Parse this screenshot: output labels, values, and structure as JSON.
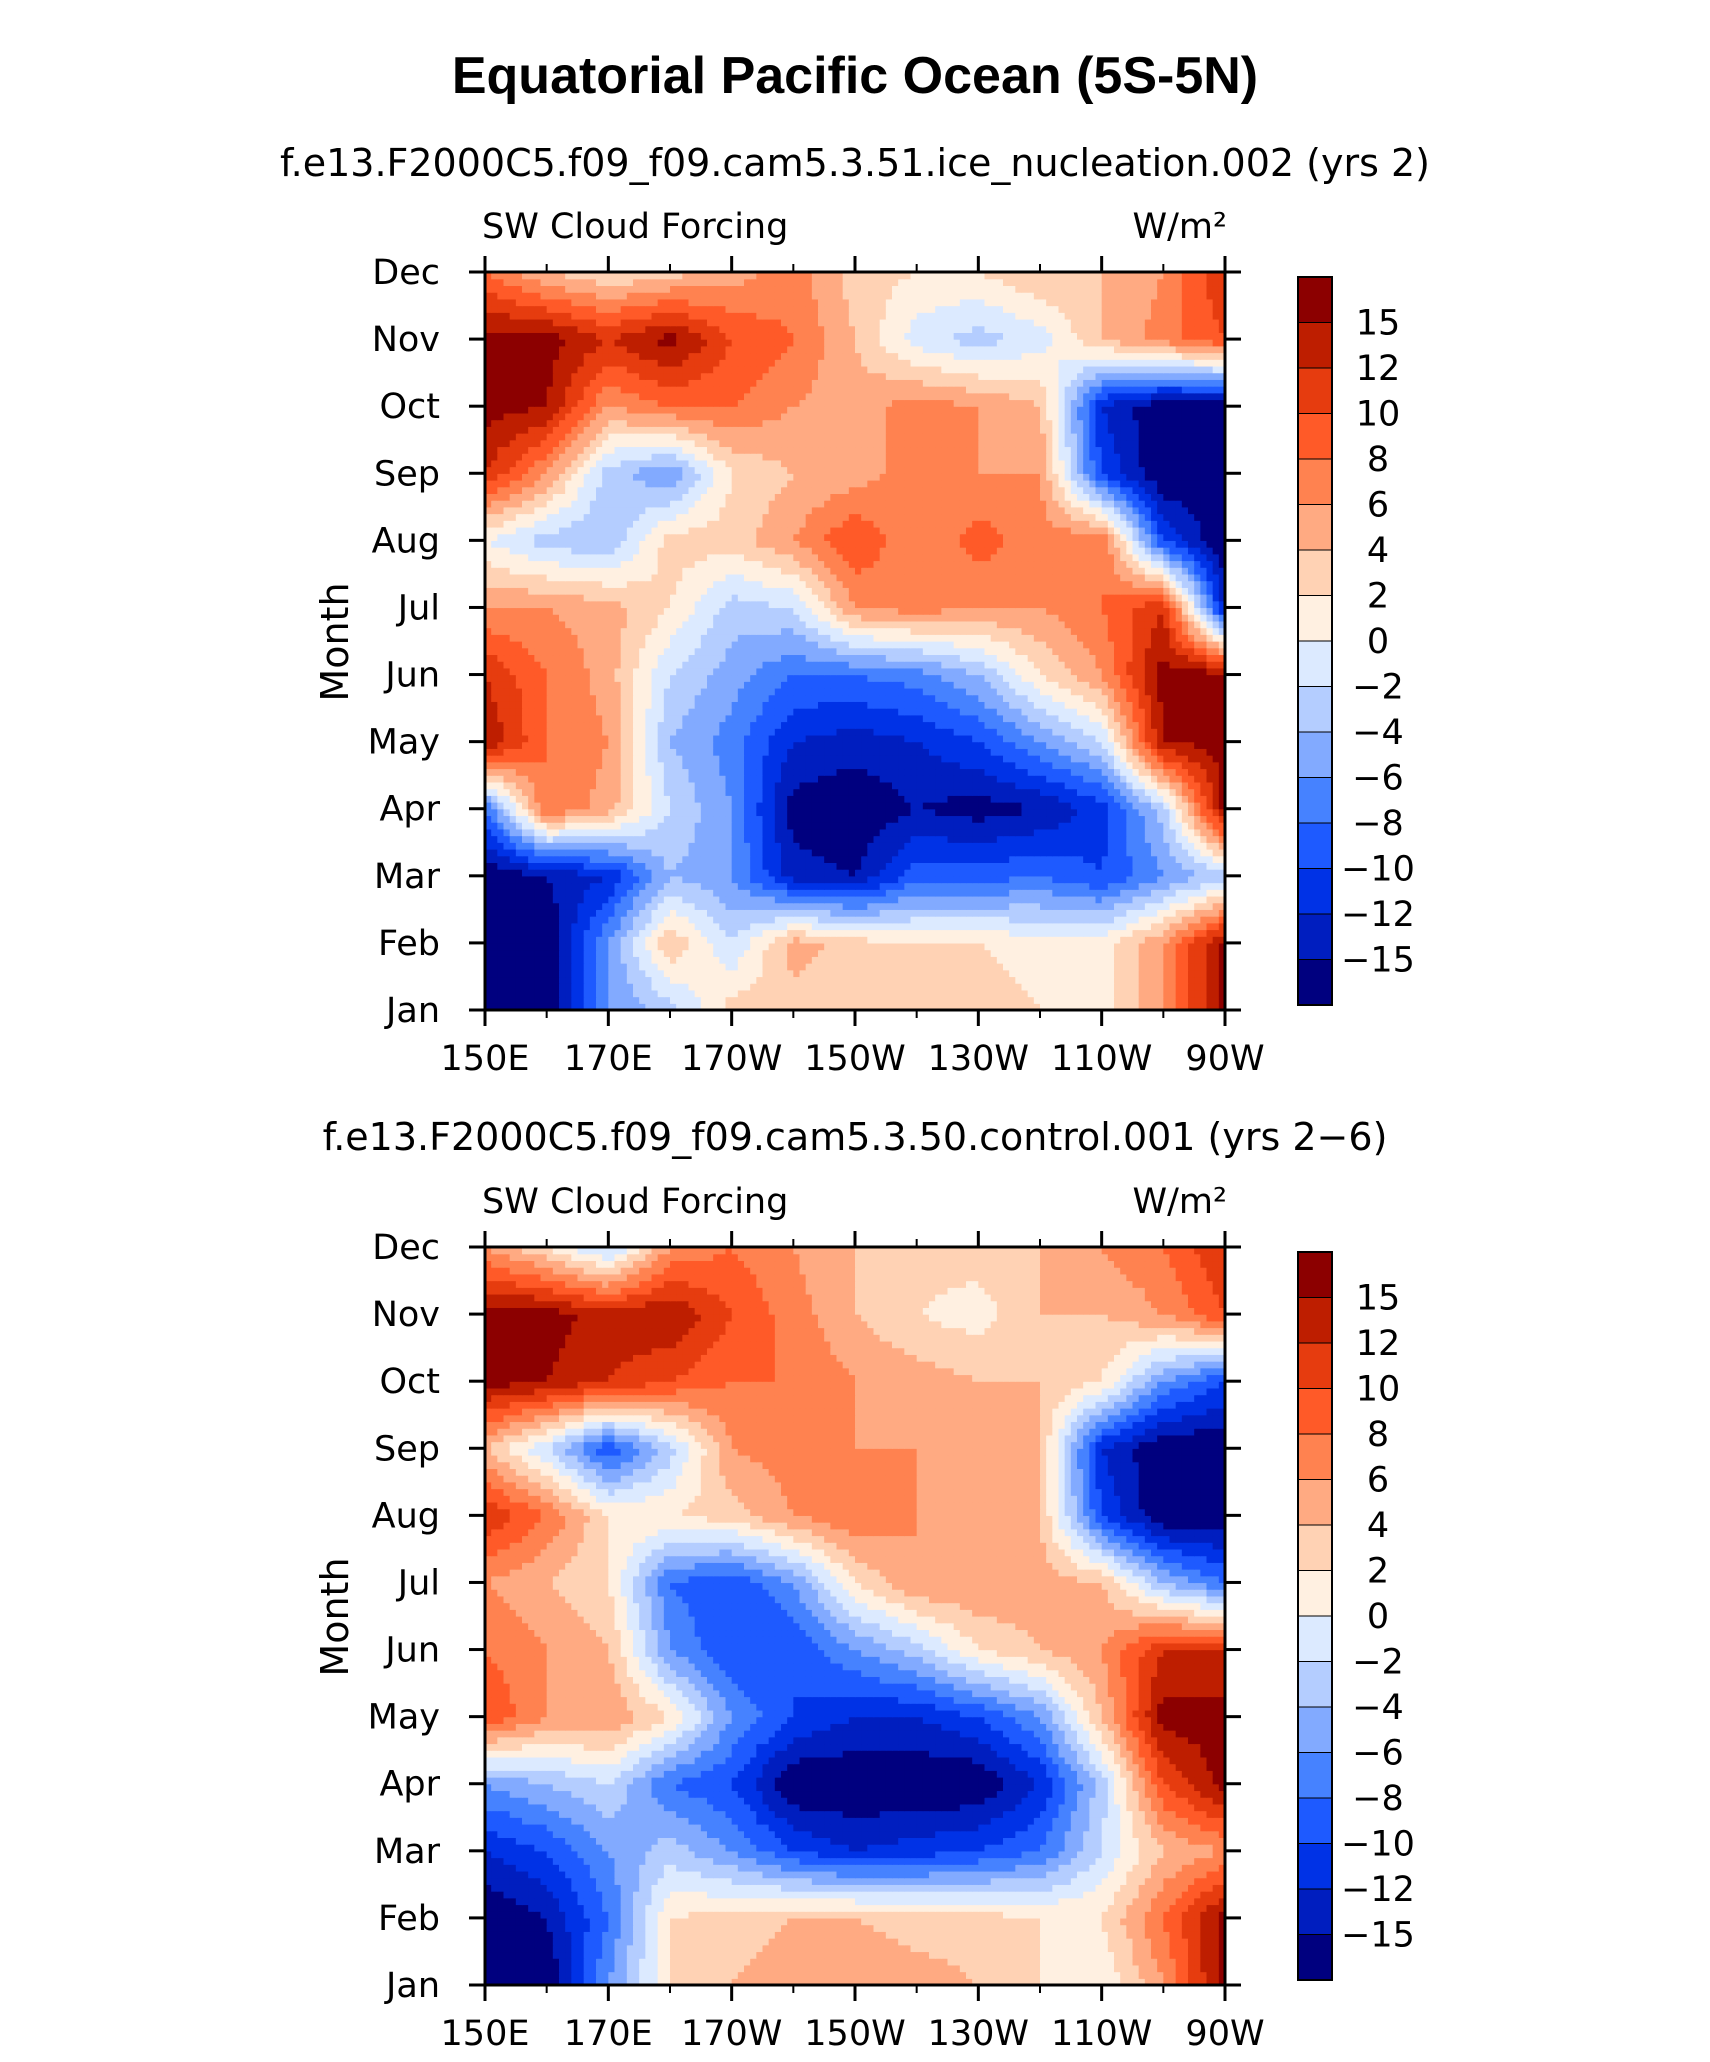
{
  "title": "Equatorial Pacific Ocean (5S-5N)",
  "colors": {
    "levels": [
      "#00007f",
      "#001ebf",
      "#0032e6",
      "#1e5aff",
      "#4682ff",
      "#82aaff",
      "#b4cdff",
      "#dceaff",
      "#fff0e1",
      "#ffd2b4",
      "#ffaa82",
      "#ff8250",
      "#ff5a28",
      "#e63c0f",
      "#be1e00",
      "#8c0000"
    ]
  },
  "chart_data": [
    {
      "type": "heatmap",
      "subtitle": "f.e13.F2000C5.f09_f09.cam5.3.51.ice_nucleation.002 (yrs 2)",
      "left_label": "SW Cloud Forcing",
      "units_label": "W/m²",
      "ylabel": "Month",
      "xlabel": "",
      "x_ticks": [
        "150E",
        "170E",
        "170W",
        "150W",
        "130W",
        "110W",
        "90W"
      ],
      "x_lon_range": [
        150,
        270
      ],
      "y_ticks": [
        "Jan",
        "Feb",
        "Mar",
        "Apr",
        "May",
        "Jun",
        "Jul",
        "Aug",
        "Sep",
        "Oct",
        "Nov",
        "Dec"
      ],
      "colorbar_labels": [
        "15",
        "12",
        "10",
        "8",
        "6",
        "4",
        "2",
        "0",
        "−2",
        "−4",
        "−6",
        "−8",
        "−10",
        "−12",
        "−15"
      ],
      "clim": [
        -16,
        16
      ],
      "x": [
        150,
        160,
        170,
        180,
        190,
        200,
        210,
        220,
        230,
        240,
        250,
        260,
        270
      ],
      "z": [
        [
          -16,
          -16,
          -6,
          -3,
          3,
          3,
          2,
          2,
          3,
          2,
          1,
          6,
          15
        ],
        [
          -16,
          -16,
          -6,
          4,
          -2,
          5,
          3,
          2,
          2,
          1,
          1,
          6,
          15
        ],
        [
          -16,
          -14,
          -12,
          -4,
          -6,
          -13,
          -14,
          -9,
          -9,
          -8,
          -10,
          -6,
          -3
        ],
        [
          -8,
          8,
          5,
          -2,
          -6,
          -15,
          -16,
          -14,
          -15,
          -14,
          -11,
          -3,
          15
        ],
        [
          14,
          8,
          6,
          -4,
          -7,
          -12,
          -13,
          -12,
          -10,
          -6,
          -2,
          14,
          15
        ],
        [
          12,
          8,
          5,
          -2,
          -5,
          -8,
          -8,
          -7,
          -4,
          2,
          6,
          15,
          15
        ],
        [
          6,
          6,
          5,
          2,
          -3,
          -2,
          6,
          7,
          6,
          6,
          8,
          12,
          -13
        ],
        [
          0,
          -3,
          -4,
          3,
          3,
          6,
          10,
          6,
          9,
          7,
          8,
          -10,
          -16
        ],
        [
          12,
          6,
          -3,
          -6,
          2,
          4,
          5,
          7,
          6,
          6,
          -10,
          -16,
          -16
        ],
        [
          15,
          14,
          6,
          8,
          8,
          6,
          5,
          7,
          6,
          4,
          -12,
          -16,
          -16
        ],
        [
          15,
          15,
          12,
          15,
          10,
          8,
          4,
          -1,
          -3,
          -1,
          4,
          7,
          10
        ],
        [
          8,
          4,
          2,
          3,
          5,
          7,
          3,
          2,
          2,
          4,
          4,
          6,
          12
        ]
      ]
    },
    {
      "type": "heatmap",
      "subtitle": "f.e13.F2000C5.f09_f09.cam5.3.50.control.001 (yrs 2−6)",
      "left_label": "SW Cloud Forcing",
      "units_label": "W/m²",
      "ylabel": "Month",
      "xlabel": "",
      "x_ticks": [
        "150E",
        "170E",
        "170W",
        "150W",
        "130W",
        "110W",
        "90W"
      ],
      "x_lon_range": [
        150,
        270
      ],
      "y_ticks": [
        "Jan",
        "Feb",
        "Mar",
        "Apr",
        "May",
        "Jun",
        "Jul",
        "Aug",
        "Sep",
        "Oct",
        "Nov",
        "Dec"
      ],
      "colorbar_labels": [
        "15",
        "12",
        "10",
        "8",
        "6",
        "4",
        "2",
        "0",
        "−2",
        "−4",
        "−6",
        "−8",
        "−10",
        "−12",
        "−15"
      ],
      "clim": [
        -16,
        16
      ],
      "x": [
        150,
        160,
        170,
        180,
        190,
        200,
        210,
        220,
        230,
        240,
        250,
        260,
        270
      ],
      "z": [
        [
          -16,
          -16,
          -6,
          2,
          4,
          5,
          6,
          5,
          4,
          2,
          0,
          6,
          15
        ],
        [
          -16,
          -14,
          -8,
          2,
          3,
          4,
          4,
          3,
          3,
          2,
          2,
          8,
          15
        ],
        [
          -12,
          -10,
          -6,
          -3,
          -6,
          -10,
          -12,
          -11,
          -10,
          -8,
          -2,
          4,
          6
        ],
        [
          -6,
          -4,
          -2,
          -8,
          -10,
          -16,
          -16,
          -16,
          -16,
          -12,
          -3,
          10,
          15
        ],
        [
          10,
          6,
          6,
          2,
          -6,
          -10,
          -12,
          -12,
          -10,
          -6,
          4,
          15,
          15
        ],
        [
          8,
          6,
          4,
          -6,
          -10,
          -10,
          -6,
          -3,
          2,
          4,
          6,
          12,
          12
        ],
        [
          6,
          4,
          2,
          -8,
          -10,
          -6,
          2,
          6,
          6,
          5,
          4,
          -4,
          -8
        ],
        [
          12,
          8,
          2,
          2,
          3,
          6,
          8,
          6,
          5,
          4,
          -10,
          -16,
          -16
        ],
        [
          4,
          -2,
          -10,
          -3,
          6,
          7,
          6,
          6,
          5,
          4,
          -12,
          -16,
          -16
        ],
        [
          15,
          14,
          12,
          10,
          8,
          8,
          6,
          5,
          4,
          4,
          2,
          -6,
          -10
        ],
        [
          15,
          15,
          13,
          14,
          10,
          7,
          4,
          2,
          1,
          4,
          4,
          6,
          10
        ],
        [
          6,
          2,
          -3,
          6,
          8,
          6,
          4,
          3,
          3,
          4,
          6,
          8,
          12
        ]
      ]
    }
  ]
}
